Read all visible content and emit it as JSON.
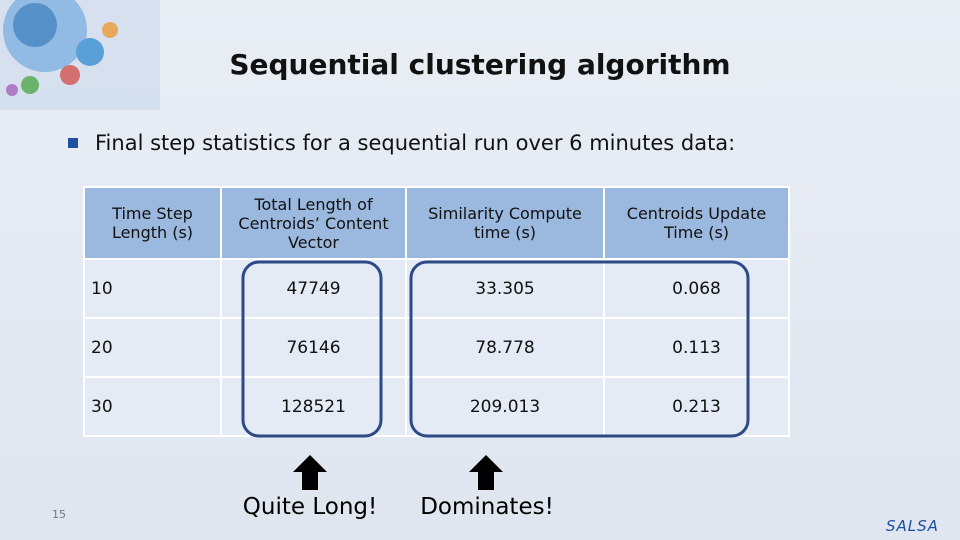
{
  "slide": {
    "title": "Sequential clustering algorithm",
    "bullet": "Final step statistics for a sequential run over 6 minutes data:",
    "table": {
      "header": [
        "Time Step Length (s)",
        "Total Length of Centroids’ Content Vector",
        "Similarity Compute time (s)",
        "Centroids Update Time (s)"
      ],
      "rows": [
        [
          "10",
          "47749",
          "33.305",
          "0.068"
        ],
        [
          "20",
          "76146",
          "78.778",
          "0.113"
        ],
        [
          "30",
          "128521",
          "209.013",
          "0.213"
        ]
      ]
    },
    "annotations": [
      "Quite Long!",
      "Dominates!"
    ],
    "page_number": "15",
    "logo": "SALSA"
  }
}
